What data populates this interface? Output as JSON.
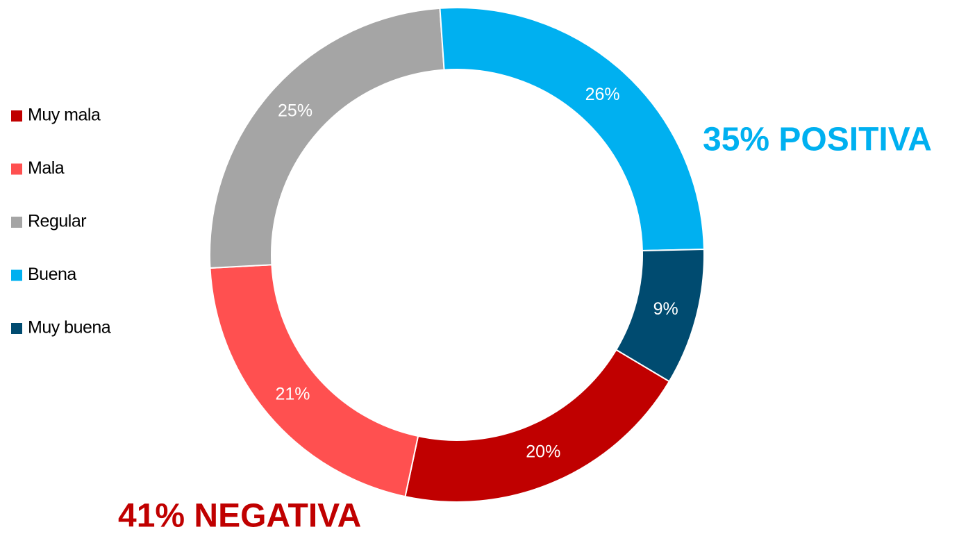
{
  "chart_data": {
    "type": "donut",
    "categories": [
      "Muy mala",
      "Mala",
      "Regular",
      "Buena",
      "Muy buena"
    ],
    "values": [
      20,
      21,
      25,
      26,
      9
    ],
    "value_labels": [
      "20%",
      "21%",
      "25%",
      "26%",
      "9%"
    ],
    "colors": [
      "#c00000",
      "#ff5050",
      "#a5a5a5",
      "#00b0f0",
      "#004b70"
    ],
    "legend": "left",
    "annotations": [
      {
        "text": "35% POSITIVA",
        "color": "#00b0f0"
      },
      {
        "text": "41% NEGATIVA",
        "color": "#c00000"
      }
    ]
  }
}
